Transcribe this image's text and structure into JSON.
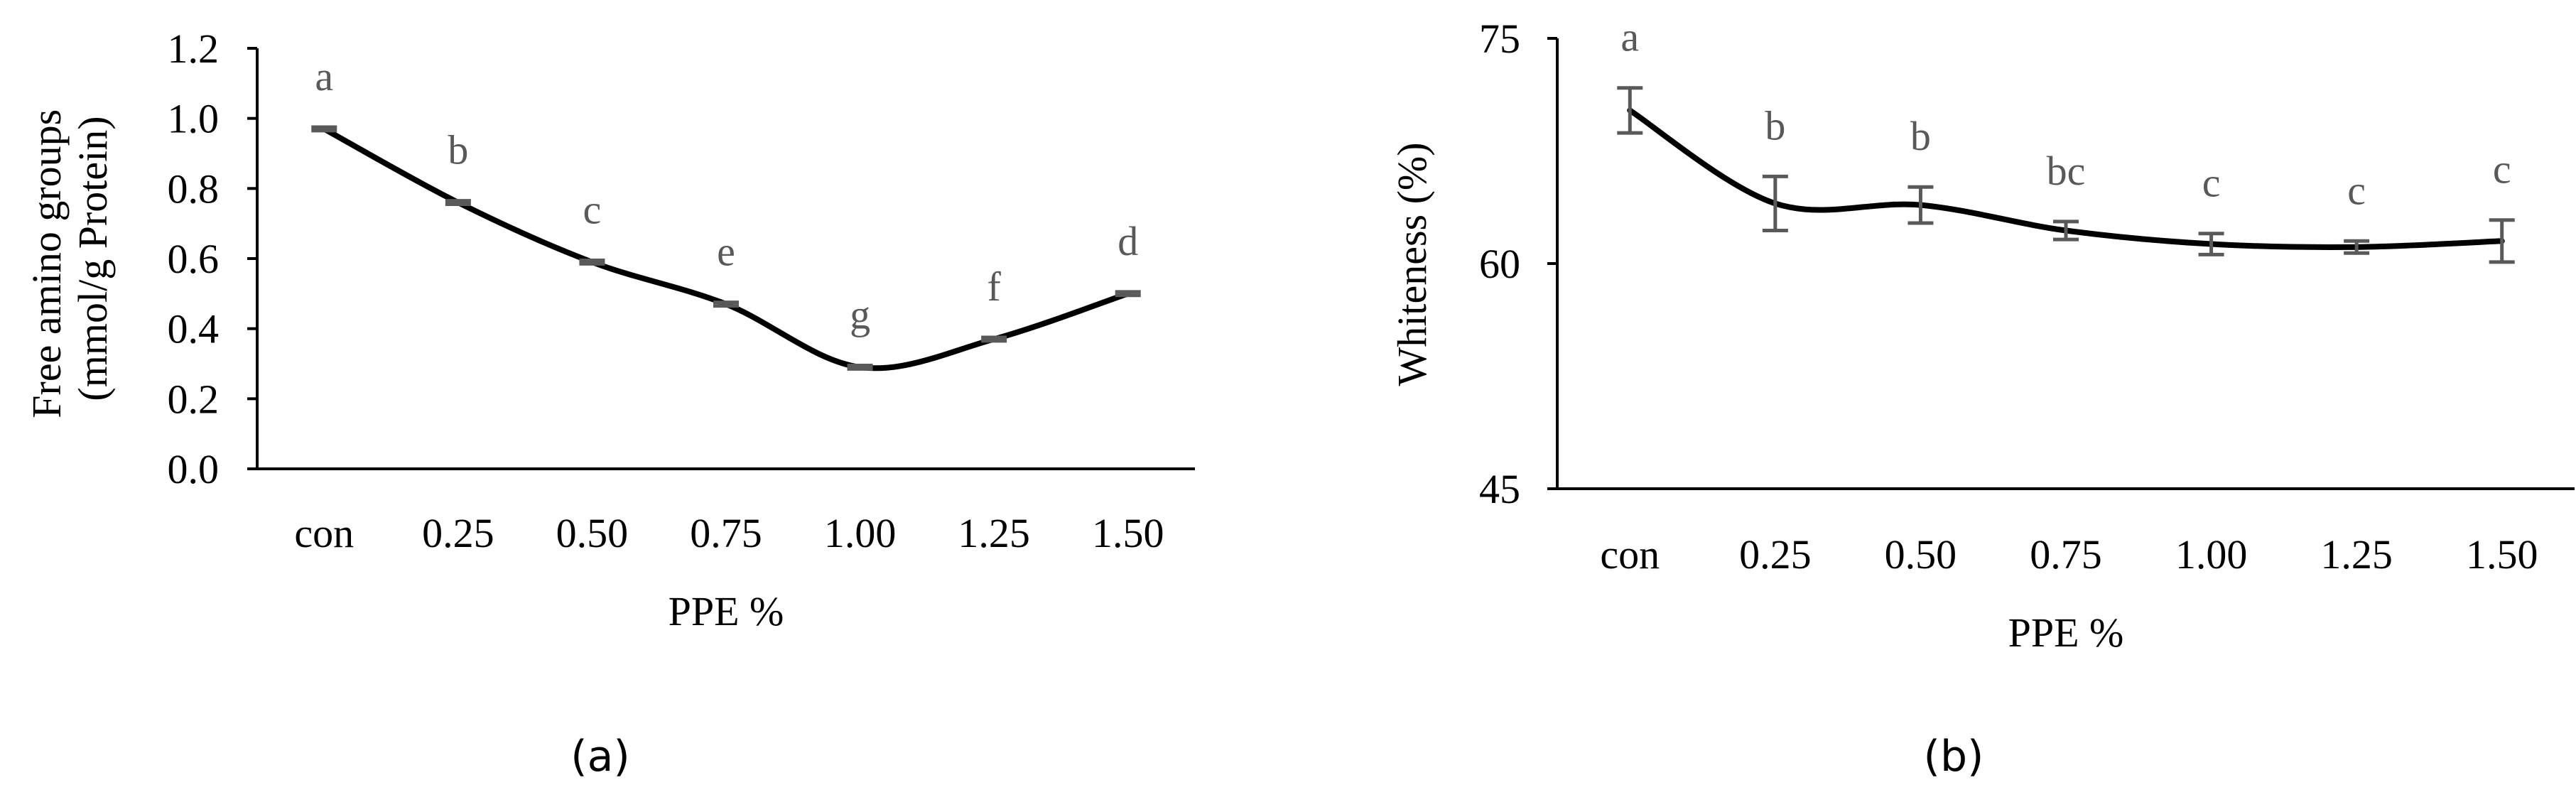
{
  "panels": [
    {
      "id": "a",
      "caption": "(a)",
      "chart_data": {
        "type": "line",
        "categories": [
          "con",
          "0.25",
          "0.50",
          "0.75",
          "1.00",
          "1.25",
          "1.50"
        ],
        "values": [
          0.97,
          0.76,
          0.59,
          0.47,
          0.29,
          0.37,
          0.5
        ],
        "errors": [
          0.005,
          0.005,
          0.005,
          0.005,
          0.005,
          0.005,
          0.005
        ],
        "letters": [
          "a",
          "b",
          "c",
          "e",
          "g",
          "f",
          "d"
        ],
        "xlabel": "PPE %",
        "ylabel_lines": [
          "Free amino groups",
          "(mmol/g Protein)"
        ],
        "ylim": [
          0,
          1.2
        ],
        "yticks": [
          "0.0",
          "0.2",
          "0.4",
          "0.6",
          "0.8",
          "1.0",
          "1.2"
        ],
        "line_color": "#000000",
        "letter_color": "#595959",
        "grid": false
      }
    },
    {
      "id": "b",
      "caption": "(b)",
      "chart_data": {
        "type": "line",
        "categories": [
          "con",
          "0.25",
          "0.50",
          "0.75",
          "1.00",
          "1.25",
          "1.50"
        ],
        "values": [
          70.2,
          64.0,
          63.9,
          62.2,
          61.3,
          61.1,
          61.5
        ],
        "errors": [
          1.5,
          1.8,
          1.2,
          0.6,
          0.7,
          0.4,
          1.4
        ],
        "letters": [
          "a",
          "b",
          "b",
          "bc",
          "c",
          "c",
          "c"
        ],
        "xlabel": "PPE %",
        "ylabel_lines": [
          "Whiteness (%)"
        ],
        "ylim": [
          45,
          75
        ],
        "yticks": [
          "45",
          "60",
          "75"
        ],
        "line_color": "#000000",
        "letter_color": "#595959",
        "errorbar_color": "#595959",
        "grid": false
      }
    }
  ]
}
